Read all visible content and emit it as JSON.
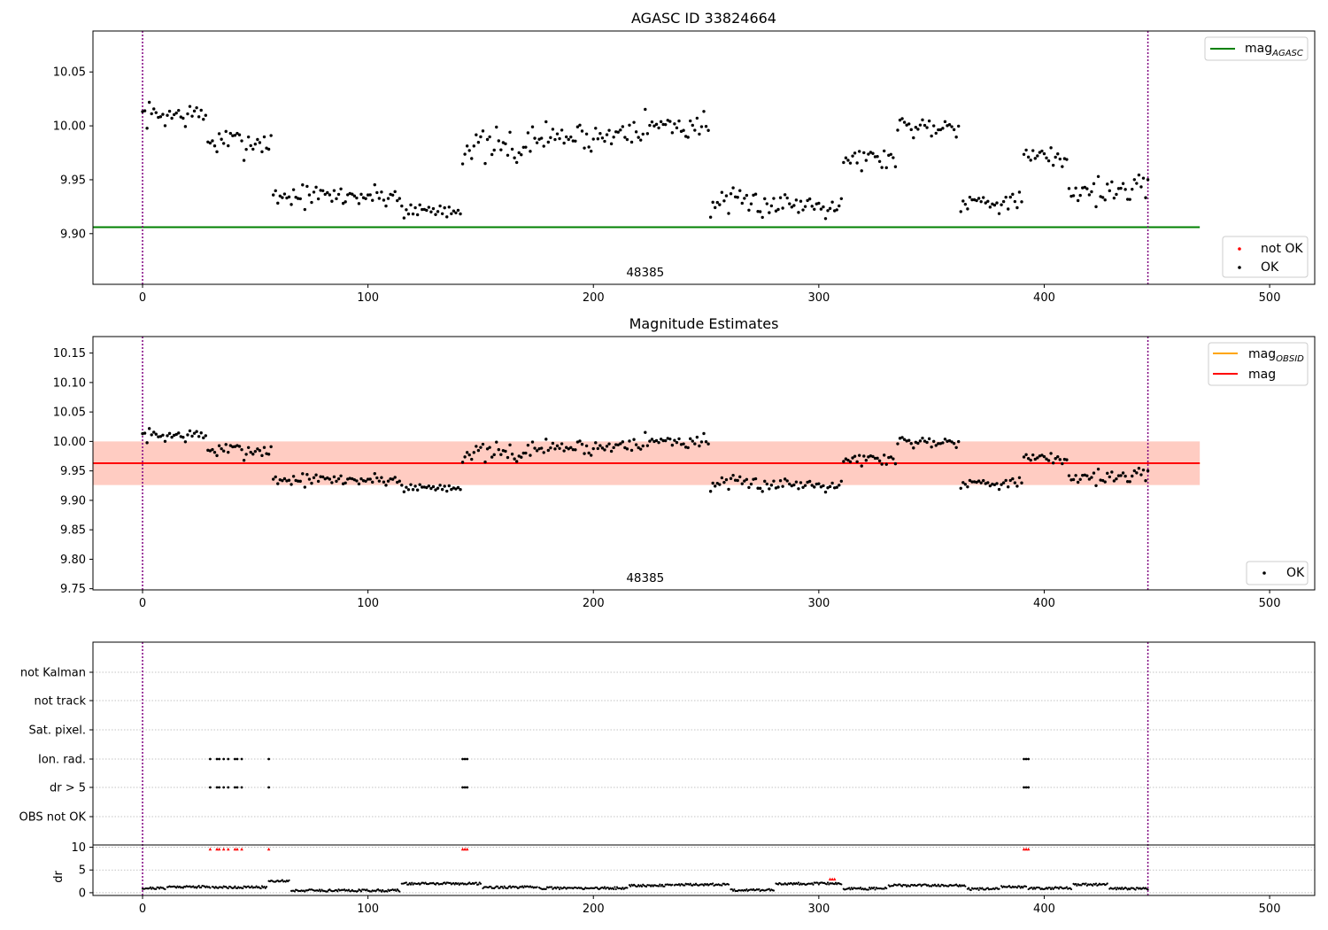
{
  "colors": {
    "agasc_line": "#008000",
    "mag_line": "#ff0000",
    "mag_obsid_line": "#ffa500",
    "band_outer": "#ffc0cb",
    "band_inner": "#ffa07a",
    "obs_boundary": "#800080",
    "ok_point": "#000000",
    "not_ok_point": "#ff0000",
    "grid": "#b0b0b0"
  },
  "chart_data": [
    {
      "type": "scatter",
      "title": "AGASC ID 33824664",
      "xlim": [
        -22,
        520
      ],
      "ylim": [
        9.853,
        10.088
      ],
      "x_ticks": [
        0,
        100,
        200,
        300,
        400,
        500
      ],
      "x_tick_labels": [
        "0",
        "100",
        "200",
        "300",
        "400",
        "500"
      ],
      "y_ticks": [
        9.9,
        9.95,
        10.0,
        10.05
      ],
      "y_tick_labels": [
        "9.90",
        "9.95",
        "10.00",
        "10.05"
      ],
      "obs_boundaries": [
        0,
        446
      ],
      "obs_label": "48385",
      "obs_label_x": 223,
      "hlines": [
        {
          "name": "mag",
          "subscript": "AGASC",
          "y": 9.906,
          "x_range": [
            -22,
            469
          ]
        }
      ],
      "legend": [
        {
          "text": "mag",
          "sub": "AGASC"
        },
        {
          "text": "not OK"
        },
        {
          "text": "OK"
        }
      ],
      "series": [
        {
          "name": "OK",
          "segments": [
            {
              "x": [
                0,
                28
              ],
              "mean": 10.01,
              "spread": 0.018
            },
            {
              "x": [
                29,
                57
              ],
              "mean": 9.985,
              "spread": 0.02
            },
            {
              "x": [
                58,
                114
              ],
              "mean": 9.935,
              "spread": 0.016
            },
            {
              "x": [
                115,
                141
              ],
              "mean": 9.922,
              "spread": 0.012
            },
            {
              "x": [
                142,
                172
              ],
              "mean": 9.98,
              "spread": 0.024
            },
            {
              "x": [
                173,
                210
              ],
              "mean": 9.99,
              "spread": 0.02
            },
            {
              "x": [
                211,
                251
              ],
              "mean": 10.0,
              "spread": 0.022
            },
            {
              "x": [
                252,
                310
              ],
              "mean": 9.928,
              "spread": 0.018
            },
            {
              "x": [
                311,
                334
              ],
              "mean": 9.97,
              "spread": 0.016
            },
            {
              "x": [
                335,
                362
              ],
              "mean": 10.0,
              "spread": 0.016
            },
            {
              "x": [
                363,
                390
              ],
              "mean": 9.93,
              "spread": 0.014
            },
            {
              "x": [
                391,
                410
              ],
              "mean": 9.97,
              "spread": 0.018
            },
            {
              "x": [
                411,
                446
              ],
              "mean": 9.94,
              "spread": 0.018
            }
          ]
        }
      ]
    },
    {
      "type": "scatter",
      "title": "Magnitude Estimates",
      "xlim": [
        -22,
        520
      ],
      "ylim": [
        9.748,
        10.178
      ],
      "x_ticks": [
        0,
        100,
        200,
        300,
        400,
        500
      ],
      "x_tick_labels": [
        "0",
        "100",
        "200",
        "300",
        "400",
        "500"
      ],
      "y_ticks": [
        9.75,
        9.8,
        9.85,
        9.9,
        9.95,
        10.0,
        10.05,
        10.1,
        10.15
      ],
      "y_tick_labels": [
        "9.75",
        "9.80",
        "9.85",
        "9.90",
        "9.95",
        "10.00",
        "10.05",
        "10.10",
        "10.15"
      ],
      "obs_boundaries": [
        0,
        446
      ],
      "obs_label": "48385",
      "obs_label_x": 223,
      "mag": 9.963,
      "mag_band": [
        9.926,
        10.0
      ],
      "mag_obsid": 9.963,
      "mag_obsid_band": [
        9.926,
        10.0
      ],
      "band_x_range": [
        -22,
        469
      ],
      "legend": [
        {
          "text": "mag",
          "sub": "OBSID"
        },
        {
          "text": "mag"
        },
        {
          "text": "OK"
        }
      ]
    },
    {
      "type": "scatter",
      "title": "",
      "xlim": [
        -22,
        520
      ],
      "x_ticks": [
        0,
        100,
        200,
        300,
        400,
        500
      ],
      "obs_boundaries": [
        0,
        446
      ],
      "flag_rows": [
        "not Kalman",
        "not track",
        "Sat. pixel.",
        "Ion. rad.",
        "dr > 5",
        "OBS not OK"
      ],
      "flagged_x": [
        30,
        33,
        34,
        36,
        38,
        41,
        42,
        44,
        56,
        142,
        143,
        144,
        391,
        392,
        393
      ],
      "dr": {
        "ylabel": "dr",
        "ylim": [
          -0.6,
          10.5
        ],
        "y_ticks": [
          0,
          5,
          10
        ],
        "y_tick_labels": [
          "0",
          "5",
          "10"
        ],
        "not_ok_x": [
          30,
          33,
          34,
          36,
          38,
          41,
          42,
          44,
          56,
          142,
          143,
          144,
          305,
          306,
          307,
          391,
          392,
          393
        ],
        "segments": [
          {
            "x": [
              0,
              10
            ],
            "level": 1.0
          },
          {
            "x": [
              11,
              30
            ],
            "level": 1.3
          },
          {
            "x": [
              31,
              55
            ],
            "level": 1.2
          },
          {
            "x": [
              56,
              65
            ],
            "level": 2.6
          },
          {
            "x": [
              66,
              114
            ],
            "level": 0.5
          },
          {
            "x": [
              115,
              150
            ],
            "level": 2.0
          },
          {
            "x": [
              151,
              175
            ],
            "level": 1.2
          },
          {
            "x": [
              176,
              215
            ],
            "level": 1.0
          },
          {
            "x": [
              216,
              235
            ],
            "level": 1.6
          },
          {
            "x": [
              236,
              260
            ],
            "level": 1.8
          },
          {
            "x": [
              261,
              280
            ],
            "level": 0.6
          },
          {
            "x": [
              281,
              310
            ],
            "level": 2.0
          },
          {
            "x": [
              311,
              330
            ],
            "level": 0.9
          },
          {
            "x": [
              331,
              365
            ],
            "level": 1.6
          },
          {
            "x": [
              366,
              380
            ],
            "level": 0.8
          },
          {
            "x": [
              381,
              392
            ],
            "level": 1.3
          },
          {
            "x": [
              393,
              412
            ],
            "level": 1.0
          },
          {
            "x": [
              413,
              428
            ],
            "level": 1.8
          },
          {
            "x": [
              429,
              446
            ],
            "level": 0.9
          }
        ]
      }
    }
  ]
}
